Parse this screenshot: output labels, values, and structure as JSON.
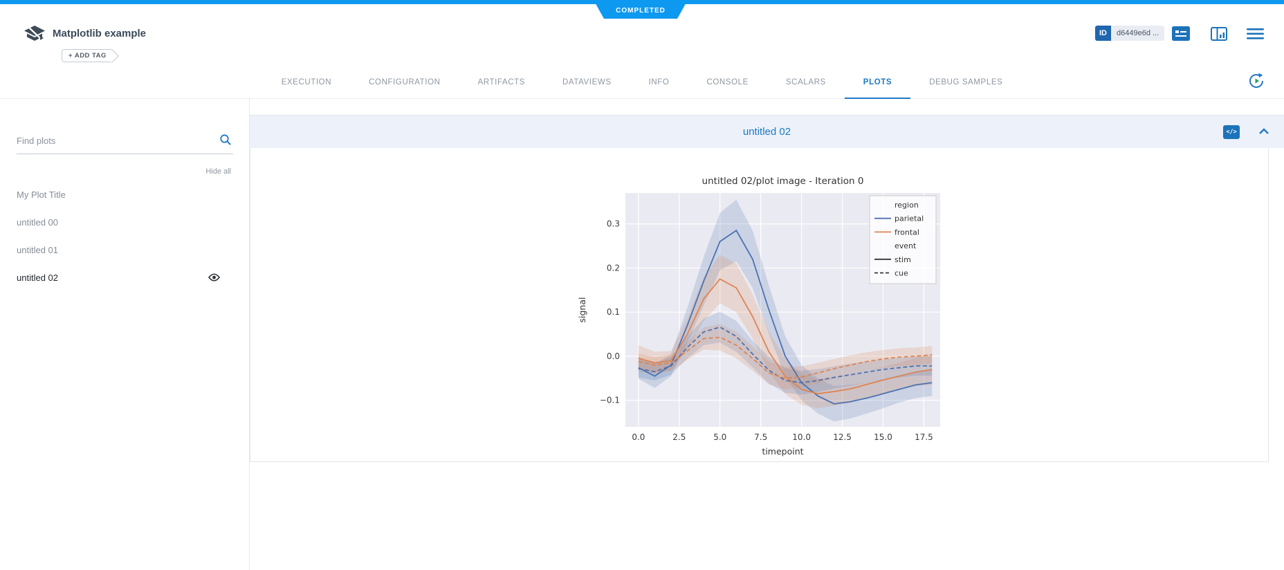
{
  "page": {
    "bg": "#ffffff",
    "accent_blue": "#1d79c4",
    "topbar_blue": "#0d99f0"
  },
  "status_banner": {
    "label": "COMPLETED"
  },
  "header": {
    "title": "Matplotlib example",
    "add_tag": "+ ADD TAG",
    "id_label": "ID",
    "id_value": "d6449e6d ...",
    "icons": [
      "experiment-logo-icon",
      "details-icon",
      "panel-chart-icon",
      "menu-icon",
      "refresh-icon"
    ]
  },
  "tabs": {
    "active": "PLOTS",
    "items": [
      "EXECUTION",
      "CONFIGURATION",
      "ARTIFACTS",
      "DATAVIEWS",
      "INFO",
      "CONSOLE",
      "SCALARS",
      "PLOTS",
      "DEBUG SAMPLES"
    ]
  },
  "sidebar": {
    "search_placeholder": "Find plots",
    "hide_all": "Hide all",
    "plots": [
      {
        "label": "My Plot Title",
        "selected": false,
        "visible": false
      },
      {
        "label": "untitled 00",
        "selected": false,
        "visible": false
      },
      {
        "label": "untitled 01",
        "selected": false,
        "visible": false
      },
      {
        "label": "untitled 02",
        "selected": true,
        "visible": true
      }
    ]
  },
  "plot_group": {
    "title": "untitled 02",
    "code_icon_glyph": "</>"
  },
  "chart_data": {
    "type": "line",
    "title": "untitled 02/plot image - Iteration 0",
    "xlabel": "timepoint",
    "ylabel": "signal",
    "xlim": [
      -0.8,
      18.5
    ],
    "ylim": [
      -0.16,
      0.37
    ],
    "xticks": [
      0,
      2.5,
      5,
      7.5,
      10,
      12.5,
      15,
      17.5
    ],
    "yticks": [
      0.3,
      0.2,
      0.1,
      0,
      -0.1
    ],
    "grid": true,
    "plot_bg": "#eaeaf2",
    "grid_color": "#ffffff",
    "x": [
      0,
      1,
      2,
      3,
      4,
      5,
      6,
      7,
      8,
      9,
      10,
      11,
      12,
      13,
      14,
      15,
      16,
      17,
      18
    ],
    "series": [
      {
        "name": "parietal-stim",
        "color": "#4c72b0",
        "dash": "solid",
        "values": [
          -0.026,
          -0.045,
          -0.02,
          0.07,
          0.17,
          0.26,
          0.285,
          0.22,
          0.105,
          0.0,
          -0.06,
          -0.09,
          -0.108,
          -0.103,
          -0.095,
          -0.085,
          -0.075,
          -0.065,
          -0.06
        ],
        "ci": [
          0.025,
          0.027,
          0.025,
          0.04,
          0.055,
          0.065,
          0.07,
          0.065,
          0.055,
          0.045,
          0.04,
          0.04,
          0.04,
          0.038,
          0.035,
          0.033,
          0.03,
          0.03,
          0.03
        ]
      },
      {
        "name": "frontal-stim",
        "color": "#dd8452",
        "dash": "solid",
        "values": [
          -0.005,
          -0.015,
          -0.01,
          0.05,
          0.13,
          0.175,
          0.155,
          0.09,
          0.01,
          -0.046,
          -0.075,
          -0.085,
          -0.08,
          -0.074,
          -0.064,
          -0.054,
          -0.045,
          -0.036,
          -0.03
        ],
        "ci": [
          0.03,
          0.025,
          0.022,
          0.035,
          0.05,
          0.055,
          0.055,
          0.05,
          0.045,
          0.04,
          0.035,
          0.033,
          0.032,
          0.032,
          0.03,
          0.03,
          0.03,
          0.032,
          0.035
        ]
      },
      {
        "name": "parietal-cue",
        "color": "#4c72b0",
        "dash": "dashed",
        "values": [
          -0.028,
          -0.035,
          -0.022,
          0.02,
          0.055,
          0.066,
          0.045,
          0.005,
          -0.032,
          -0.055,
          -0.06,
          -0.055,
          -0.048,
          -0.042,
          -0.036,
          -0.03,
          -0.026,
          -0.022,
          -0.022
        ],
        "ci": [
          0.02,
          0.02,
          0.02,
          0.025,
          0.03,
          0.035,
          0.035,
          0.03,
          0.03,
          0.028,
          0.027,
          0.026,
          0.025,
          0.025,
          0.024,
          0.023,
          0.022,
          0.022,
          0.022
        ]
      },
      {
        "name": "frontal-cue",
        "color": "#dd8452",
        "dash": "dashed",
        "values": [
          -0.012,
          -0.02,
          -0.015,
          0.012,
          0.04,
          0.043,
          0.025,
          -0.005,
          -0.038,
          -0.05,
          -0.047,
          -0.038,
          -0.028,
          -0.02,
          -0.012,
          -0.006,
          -0.002,
          0.0,
          0.003
        ],
        "ci": [
          0.018,
          0.018,
          0.018,
          0.02,
          0.025,
          0.03,
          0.03,
          0.028,
          0.026,
          0.025,
          0.024,
          0.023,
          0.022,
          0.022,
          0.021,
          0.02,
          0.02,
          0.02,
          0.02
        ]
      }
    ],
    "legend": {
      "position": "upper-right",
      "entries": [
        {
          "label": "region",
          "header": true
        },
        {
          "label": "parietal",
          "color": "#4c72b0",
          "dash": "solid"
        },
        {
          "label": "frontal",
          "color": "#dd8452",
          "dash": "solid"
        },
        {
          "label": "event",
          "header": true
        },
        {
          "label": "stim",
          "color": "#333333",
          "dash": "solid"
        },
        {
          "label": "cue",
          "color": "#333333",
          "dash": "dashed"
        }
      ]
    }
  }
}
